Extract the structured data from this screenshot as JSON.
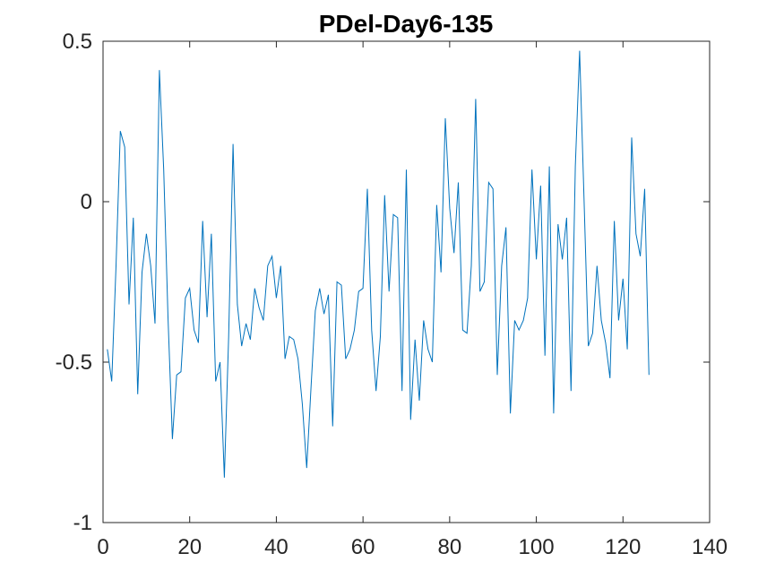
{
  "chart_data": {
    "type": "line",
    "title": "PDel-Day6-135",
    "xlabel": "",
    "ylabel": "",
    "xlim": [
      0,
      140
    ],
    "ylim": [
      -1,
      0.5
    ],
    "xticks": [
      0,
      20,
      40,
      60,
      80,
      100,
      120,
      140
    ],
    "yticks": [
      -1,
      -0.5,
      0,
      0.5
    ],
    "xtick_labels": [
      "0",
      "20",
      "40",
      "60",
      "80",
      "100",
      "120",
      "140"
    ],
    "ytick_labels": [
      "-1",
      "-0.5",
      "0",
      "0.5"
    ],
    "grid": false,
    "box": true,
    "series_color": "#0072BD",
    "series": [
      {
        "values": [
          [
            1,
            -0.46
          ],
          [
            2,
            -0.56
          ],
          [
            3,
            -0.2
          ],
          [
            4,
            0.22
          ],
          [
            5,
            0.17
          ],
          [
            6,
            -0.32
          ],
          [
            7,
            -0.05
          ],
          [
            8,
            -0.6
          ],
          [
            9,
            -0.22
          ],
          [
            10,
            -0.1
          ],
          [
            11,
            -0.2
          ],
          [
            12,
            -0.38
          ],
          [
            13,
            0.41
          ],
          [
            14,
            0.1
          ],
          [
            15,
            -0.36
          ],
          [
            16,
            -0.74
          ],
          [
            17,
            -0.54
          ],
          [
            18,
            -0.53
          ],
          [
            19,
            -0.3
          ],
          [
            20,
            -0.27
          ],
          [
            21,
            -0.4
          ],
          [
            22,
            -0.44
          ],
          [
            23,
            -0.06
          ],
          [
            24,
            -0.36
          ],
          [
            25,
            -0.1
          ],
          [
            26,
            -0.56
          ],
          [
            27,
            -0.5
          ],
          [
            28,
            -0.86
          ],
          [
            29,
            -0.42
          ],
          [
            30,
            0.18
          ],
          [
            31,
            -0.32
          ],
          [
            32,
            -0.45
          ],
          [
            33,
            -0.38
          ],
          [
            34,
            -0.43
          ],
          [
            35,
            -0.27
          ],
          [
            36,
            -0.33
          ],
          [
            37,
            -0.37
          ],
          [
            38,
            -0.2
          ],
          [
            39,
            -0.17
          ],
          [
            40,
            -0.3
          ],
          [
            41,
            -0.2
          ],
          [
            42,
            -0.49
          ],
          [
            43,
            -0.42
          ],
          [
            44,
            -0.43
          ],
          [
            45,
            -0.49
          ],
          [
            46,
            -0.63
          ],
          [
            47,
            -0.83
          ],
          [
            48,
            -0.58
          ],
          [
            49,
            -0.34
          ],
          [
            50,
            -0.27
          ],
          [
            51,
            -0.35
          ],
          [
            52,
            -0.29
          ],
          [
            53,
            -0.7
          ],
          [
            54,
            -0.25
          ],
          [
            55,
            -0.26
          ],
          [
            56,
            -0.49
          ],
          [
            57,
            -0.46
          ],
          [
            58,
            -0.4
          ],
          [
            59,
            -0.28
          ],
          [
            60,
            -0.27
          ],
          [
            61,
            0.04
          ],
          [
            62,
            -0.4
          ],
          [
            63,
            -0.59
          ],
          [
            64,
            -0.42
          ],
          [
            65,
            0.02
          ],
          [
            66,
            -0.28
          ],
          [
            67,
            -0.04
          ],
          [
            68,
            -0.05
          ],
          [
            69,
            -0.59
          ],
          [
            70,
            0.1
          ],
          [
            71,
            -0.68
          ],
          [
            72,
            -0.43
          ],
          [
            73,
            -0.62
          ],
          [
            74,
            -0.37
          ],
          [
            75,
            -0.46
          ],
          [
            76,
            -0.5
          ],
          [
            77,
            -0.01
          ],
          [
            78,
            -0.22
          ],
          [
            79,
            0.26
          ],
          [
            80,
            -0.02
          ],
          [
            81,
            -0.16
          ],
          [
            82,
            0.06
          ],
          [
            83,
            -0.4
          ],
          [
            84,
            -0.41
          ],
          [
            85,
            -0.2
          ],
          [
            86,
            0.32
          ],
          [
            87,
            -0.28
          ],
          [
            88,
            -0.25
          ],
          [
            89,
            0.06
          ],
          [
            90,
            0.04
          ],
          [
            91,
            -0.54
          ],
          [
            92,
            -0.2
          ],
          [
            93,
            -0.08
          ],
          [
            94,
            -0.66
          ],
          [
            95,
            -0.37
          ],
          [
            96,
            -0.4
          ],
          [
            97,
            -0.37
          ],
          [
            98,
            -0.3
          ],
          [
            99,
            0.1
          ],
          [
            100,
            -0.18
          ],
          [
            101,
            0.05
          ],
          [
            102,
            -0.48
          ],
          [
            103,
            0.11
          ],
          [
            104,
            -0.66
          ],
          [
            105,
            -0.07
          ],
          [
            106,
            -0.18
          ],
          [
            107,
            -0.05
          ],
          [
            108,
            -0.59
          ],
          [
            109,
            0.11
          ],
          [
            110,
            0.47
          ],
          [
            111,
            0.01
          ],
          [
            112,
            -0.45
          ],
          [
            113,
            -0.41
          ],
          [
            114,
            -0.2
          ],
          [
            115,
            -0.37
          ],
          [
            116,
            -0.44
          ],
          [
            117,
            -0.55
          ],
          [
            118,
            -0.06
          ],
          [
            119,
            -0.37
          ],
          [
            120,
            -0.24
          ],
          [
            121,
            -0.46
          ],
          [
            122,
            0.2
          ],
          [
            123,
            -0.1
          ],
          [
            124,
            -0.17
          ],
          [
            125,
            0.04
          ],
          [
            126,
            -0.54
          ]
        ]
      }
    ]
  }
}
